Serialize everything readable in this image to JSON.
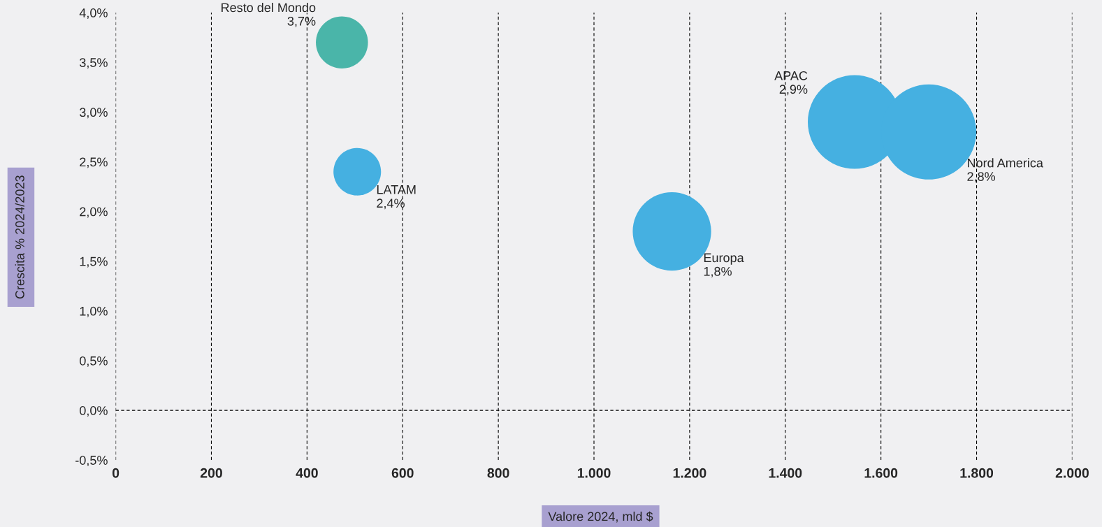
{
  "chart_data": {
    "type": "bubble",
    "xlabel": "Valore 2024, mld $",
    "ylabel": "Crescita % 2024/2023",
    "xlim": [
      0,
      2000
    ],
    "xticks": [
      0,
      200,
      400,
      600,
      800,
      {
        "value": 1000,
        "label": "1.000"
      },
      {
        "value": 1200,
        "label": "1.200"
      },
      {
        "value": 1400,
        "label": "1.400"
      },
      {
        "value": 1600,
        "label": "1.600"
      },
      {
        "value": 1800,
        "label": "1.800"
      },
      {
        "value": 2000,
        "label": "2.000"
      }
    ],
    "ylim": [
      -0.5,
      4.0
    ],
    "yticks": [
      {
        "value": -0.5,
        "label": "-0,5%"
      },
      {
        "value": 0,
        "label": "0,0%"
      },
      {
        "value": 0.5,
        "label": "0,5%"
      },
      {
        "value": 1.0,
        "label": "1,0%"
      },
      {
        "value": 1.5,
        "label": "1,5%"
      },
      {
        "value": 2.0,
        "label": "2,0%"
      },
      {
        "value": 2.5,
        "label": "2,5%"
      },
      {
        "value": 3.0,
        "label": "3,0%"
      },
      {
        "value": 3.5,
        "label": "3,5%"
      },
      {
        "value": 4.0,
        "label": "4,0%"
      }
    ],
    "grid": "x",
    "legend": false,
    "ref_lines": [
      {
        "axis": "y",
        "value": 0,
        "line_style": "dashed",
        "color": "#000000"
      }
    ],
    "series": [
      {
        "name": "Resto del Mondo",
        "color": "#4ab5a9",
        "x": [
          473
        ],
        "values": [
          3.7
        ],
        "sizes": [
          0.3
        ],
        "value_labels": [
          "3,7%"
        ]
      },
      {
        "name": "LATAM",
        "color": "#45b0e1",
        "x": [
          505
        ],
        "values": [
          2.4
        ],
        "sizes": [
          0.25
        ],
        "value_labels": [
          "2,4%"
        ]
      },
      {
        "name": "Europa",
        "color": "#45b0e1",
        "x": [
          1163
        ],
        "values": [
          1.8
        ],
        "sizes": [
          0.68
        ],
        "value_labels": [
          "1,8%"
        ]
      },
      {
        "name": "APAC",
        "color": "#45b0e1",
        "x": [
          1545
        ],
        "values": [
          2.9
        ],
        "sizes": [
          0.97
        ],
        "value_labels": [
          "2,9%"
        ]
      },
      {
        "name": "Nord America",
        "color": "#45b0e1",
        "x": [
          1700
        ],
        "values": [
          2.8
        ],
        "sizes": [
          1.0
        ],
        "value_labels": [
          "2,8%"
        ]
      }
    ]
  }
}
